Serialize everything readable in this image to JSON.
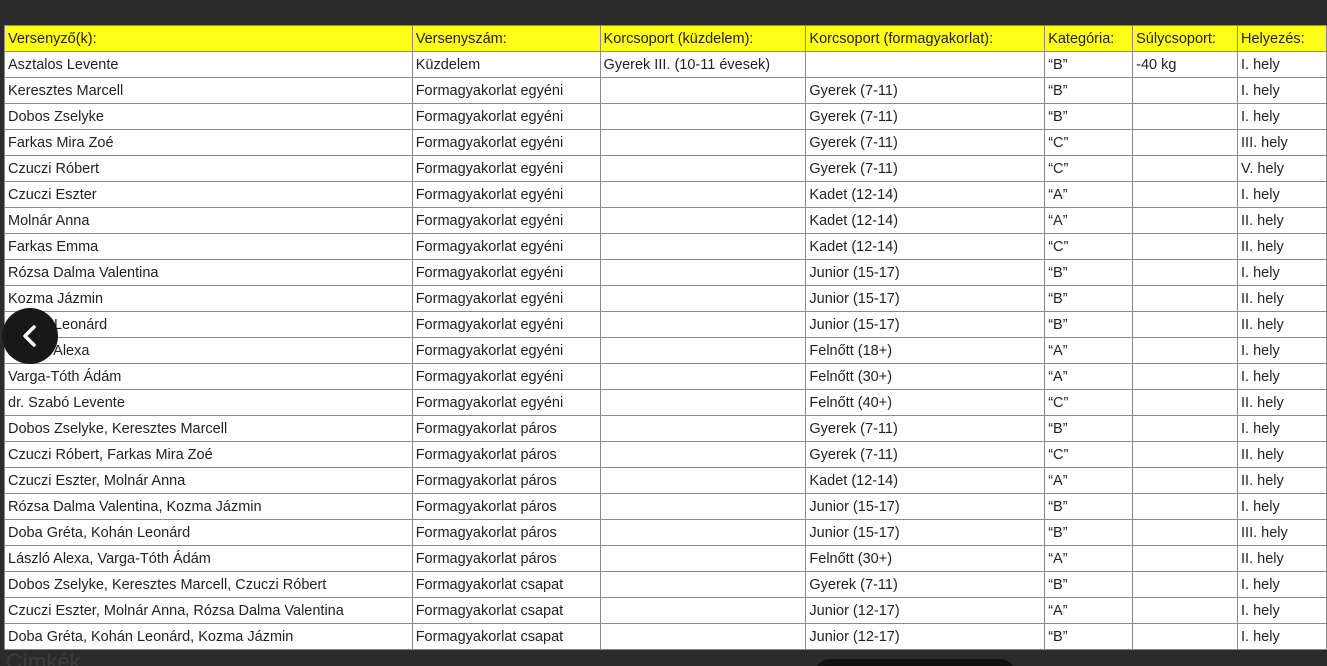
{
  "table": {
    "headers": [
      "Versenyző(k):",
      "Versenyszám:",
      "Korcsoport (küzdelem):",
      "Korcsoport (formagyakorlat):",
      "Kategória:",
      "Súlycsoport:",
      "Helyezés:"
    ],
    "rows": [
      [
        "Asztalos Levente",
        "Küzdelem",
        "Gyerek III. (10-11 évesek)",
        "",
        "“B”",
        "-40 kg",
        "I. hely"
      ],
      [
        "Keresztes Marcell",
        "Formagyakorlat egyéni",
        "",
        "Gyerek (7-11)",
        "“B”",
        "",
        "I. hely"
      ],
      [
        "Dobos Zselyke",
        "Formagyakorlat egyéni",
        "",
        "Gyerek (7-11)",
        "“B”",
        "",
        "I. hely"
      ],
      [
        "Farkas Mira Zoé",
        "Formagyakorlat egyéni",
        "",
        "Gyerek (7-11)",
        "“C”",
        "",
        "III. hely"
      ],
      [
        "Czuczi Róbert",
        "Formagyakorlat egyéni",
        "",
        "Gyerek (7-11)",
        "“C”",
        "",
        "V. hely"
      ],
      [
        "Czuczi Eszter",
        "Formagyakorlat egyéni",
        "",
        "Kadet (12-14)",
        "“A”",
        "",
        "I. hely"
      ],
      [
        "Molnár Anna",
        "Formagyakorlat egyéni",
        "",
        "Kadet (12-14)",
        "“A”",
        "",
        "II. hely"
      ],
      [
        "Farkas Emma",
        "Formagyakorlat egyéni",
        "",
        "Kadet (12-14)",
        "“C”",
        "",
        "II. hely"
      ],
      [
        "Rózsa Dalma Valentina",
        "Formagyakorlat egyéni",
        "",
        "Junior (15-17)",
        "“B”",
        "",
        "I. hely"
      ],
      [
        "Kozma Jázmin",
        "Formagyakorlat egyéni",
        "",
        "Junior (15-17)",
        "“B”",
        "",
        "II. hely"
      ],
      [
        "Kohán Leonárd",
        "Formagyakorlat egyéni",
        "",
        "Junior (15-17)",
        "“B”",
        "",
        "II. hely"
      ],
      [
        "László Alexa",
        "Formagyakorlat egyéni",
        "",
        "Felnőtt (18+)",
        "“A”",
        "",
        "I. hely"
      ],
      [
        "Varga-Tóth Ádám",
        "Formagyakorlat egyéni",
        "",
        "Felnőtt (30+)",
        "“A”",
        "",
        "I. hely"
      ],
      [
        "dr. Szabó Levente",
        "Formagyakorlat egyéni",
        "",
        "Felnőtt (40+)",
        "“C”",
        "",
        "II. hely"
      ],
      [
        "Dobos Zselyke, Keresztes Marcell",
        "Formagyakorlat páros",
        "",
        "Gyerek (7-11)",
        "“B”",
        "",
        "I. hely"
      ],
      [
        "Czuczi Róbert, Farkas Mira Zoé",
        "Formagyakorlat páros",
        "",
        "Gyerek (7-11)",
        "“C”",
        "",
        "II. hely"
      ],
      [
        "Czuczi Eszter, Molnár Anna",
        "Formagyakorlat páros",
        "",
        "Kadet (12-14)",
        "“A”",
        "",
        "II. hely"
      ],
      [
        "Rózsa Dalma Valentina, Kozma Jázmin",
        "Formagyakorlat páros",
        "",
        "Junior (15-17)",
        "“B”",
        "",
        "I. hely"
      ],
      [
        "Doba Gréta, Kohán Leonárd",
        "Formagyakorlat páros",
        "",
        "Junior (15-17)",
        "“B”",
        "",
        "III. hely"
      ],
      [
        "László Alexa, Varga-Tóth Ádám",
        "Formagyakorlat páros",
        "",
        "Felnőtt (30+)",
        "“A”",
        "",
        "II. hely"
      ],
      [
        "Dobos Zselyke, Keresztes Marcell, Czuczi Róbert",
        "Formagyakorlat csapat",
        "",
        "Gyerek (7-11)",
        "“B”",
        "",
        "I. hely"
      ],
      [
        "Czuczi Eszter, Molnár Anna, Rózsa Dalma Valentina",
        "Formagyakorlat csapat",
        "",
        "Junior (12-17)",
        "“A”",
        "",
        "I. hely"
      ],
      [
        "Doba Gréta, Kohán Leonárd, Kozma Jázmin",
        "Formagyakorlat csapat",
        "",
        "Junior (12-17)",
        "“B”",
        "",
        "I. hely"
      ]
    ]
  },
  "overlay": {
    "back_icon": "chevron-left-icon"
  },
  "bottom": {
    "label": "Címkék"
  },
  "colors": {
    "header_bg": "#ffff1a",
    "page_bg": "#2b2b2b"
  }
}
